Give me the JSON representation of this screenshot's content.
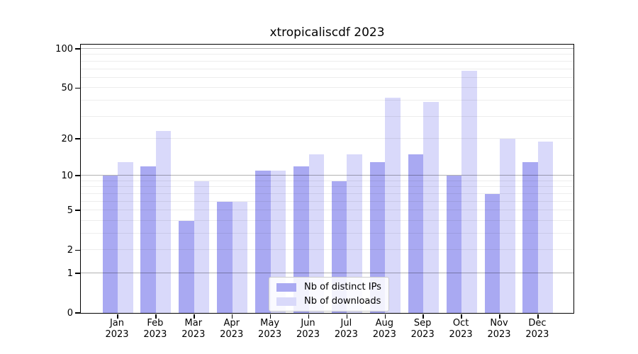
{
  "title": "xtropicaliscdf 2023",
  "chart_data": {
    "type": "bar",
    "title": "xtropicaliscdf 2023",
    "categories": [
      "Jan 2023",
      "Feb 2023",
      "Mar 2023",
      "Apr 2023",
      "May 2023",
      "Jun 2023",
      "Jul 2023",
      "Aug 2023",
      "Sep 2023",
      "Oct 2023",
      "Nov 2023",
      "Dec 2023"
    ],
    "series": [
      {
        "name": "Nb of distinct IPs",
        "color": "#a9a9f2",
        "values": [
          10,
          12,
          4,
          6,
          11,
          12,
          9,
          13,
          15,
          10,
          7,
          13
        ]
      },
      {
        "name": "Nb of downloads",
        "color": "#d9d9fa",
        "values": [
          13,
          23,
          9,
          6,
          11,
          15,
          15,
          42,
          39,
          68,
          20,
          19
        ]
      }
    ],
    "xlabel": "",
    "ylabel": "",
    "y_scale": "log10(value+1)",
    "y_ticks": [
      0,
      1,
      2,
      5,
      10,
      20,
      50,
      100
    ],
    "ylim": [
      0,
      110
    ],
    "major_gridlines": [
      1,
      10,
      100
    ],
    "minor_gridlines": [
      2,
      3,
      4,
      5,
      6,
      7,
      8,
      9,
      20,
      30,
      40,
      50,
      60,
      70,
      80,
      90
    ],
    "grid": "horizontal",
    "legend_position": "bottom-center"
  },
  "legend": {
    "items": [
      "Nb of distinct IPs",
      "Nb of downloads"
    ]
  }
}
